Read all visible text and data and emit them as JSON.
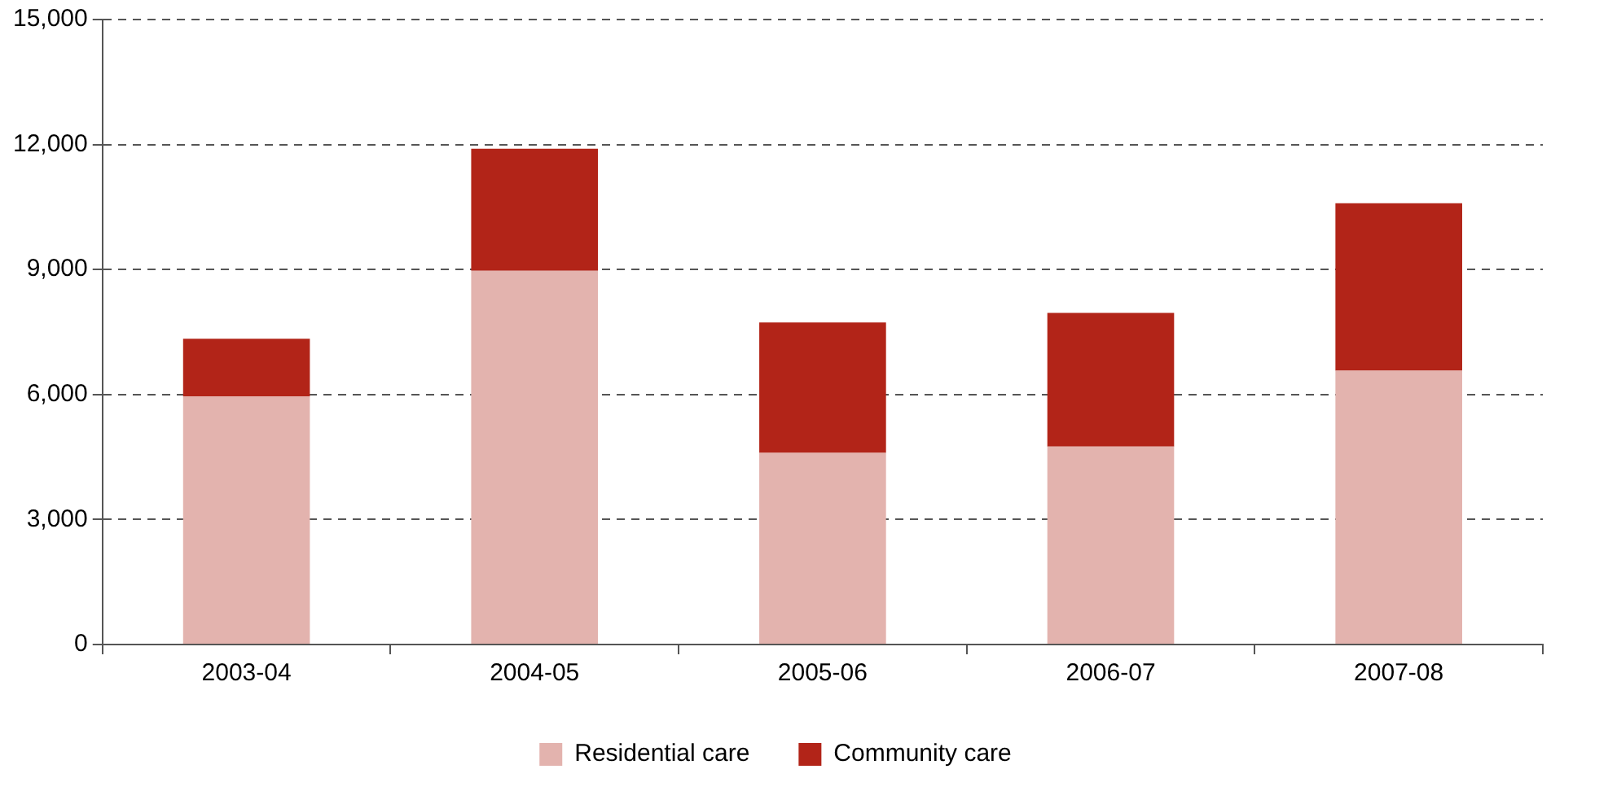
{
  "chart_data": {
    "type": "bar",
    "stacked": true,
    "categories": [
      "2003-04",
      "2004-05",
      "2005-06",
      "2006-07",
      "2007-08"
    ],
    "series": [
      {
        "name": "Residential care",
        "color": "#e3b3ae",
        "values": [
          5950,
          8970,
          4600,
          4750,
          6570
        ]
      },
      {
        "name": "Community care",
        "color": "#b22418",
        "values": [
          1390,
          2930,
          3130,
          3210,
          4020
        ]
      }
    ],
    "ylim": [
      0,
      15000
    ],
    "yticks": [
      {
        "value": 0,
        "label": "0"
      },
      {
        "value": 3000,
        "label": "3,000"
      },
      {
        "value": 6000,
        "label": "6,000"
      },
      {
        "value": 9000,
        "label": "9,000"
      },
      {
        "value": 12000,
        "label": "12,000"
      },
      {
        "value": 15000,
        "label": "15,000"
      }
    ],
    "grid": "y",
    "legend": "bottom"
  }
}
